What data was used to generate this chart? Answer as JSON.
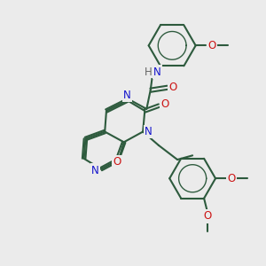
{
  "bg_color": "#ebebeb",
  "bond_color": "#2d5a3d",
  "n_color": "#1414cc",
  "o_color": "#cc1414",
  "h_color": "#666666",
  "line_width": 1.5,
  "font_size": 8.5,
  "fig_size": [
    3.0,
    3.0
  ],
  "dpi": 100,
  "xlim": [
    0,
    10
  ],
  "ylim": [
    0,
    10
  ]
}
